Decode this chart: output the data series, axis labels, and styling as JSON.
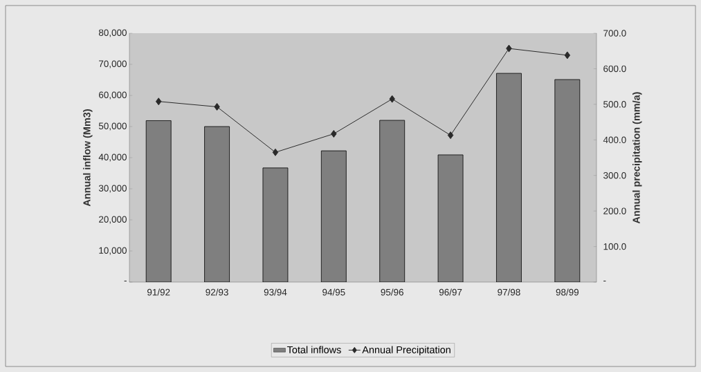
{
  "chart_data": {
    "type": "bar",
    "ylabel": "Annual inflow (Mm3)",
    "y2label": "Annual precipitation (mm/a)",
    "categories": [
      "91/92",
      "92/93",
      "93/94",
      "94/95",
      "95/96",
      "96/97",
      "97/98",
      "98/99"
    ],
    "series": [
      {
        "name": "Total inflows",
        "color": "#7f7f7f",
        "values": [
          51900,
          50000,
          36700,
          42200,
          52000,
          40900,
          67100,
          65100
        ]
      },
      {
        "name": "Annual Precipitation",
        "type": "line",
        "axis": "y2",
        "color": "#2a2a2a",
        "marker": "diamond",
        "values": [
          508,
          493,
          365,
          417,
          515,
          413,
          657,
          638
        ]
      }
    ],
    "ylim": [
      0,
      80000
    ],
    "yticks": [
      {
        "value": 0,
        "label": "-"
      },
      {
        "value": 10000,
        "label": "10,000"
      },
      {
        "value": 20000,
        "label": "20,000"
      },
      {
        "value": 30000,
        "label": "30,000"
      },
      {
        "value": 40000,
        "label": "40,000"
      },
      {
        "value": 50000,
        "label": "50,000"
      },
      {
        "value": 60000,
        "label": "60,000"
      },
      {
        "value": 70000,
        "label": "70,000"
      },
      {
        "value": 80000,
        "label": "80,000"
      }
    ],
    "y2lim": [
      0,
      700
    ],
    "y2ticks": [
      {
        "value": 0,
        "label": "-"
      },
      {
        "value": 100,
        "label": "100.0"
      },
      {
        "value": 200,
        "label": "200.0"
      },
      {
        "value": 300,
        "label": "300.0"
      },
      {
        "value": 400,
        "label": "400.0"
      },
      {
        "value": 500,
        "label": "500.0"
      },
      {
        "value": 600,
        "label": "600.0"
      },
      {
        "value": 700,
        "label": "700.0"
      }
    ],
    "grid": false,
    "legend": "bottom"
  }
}
